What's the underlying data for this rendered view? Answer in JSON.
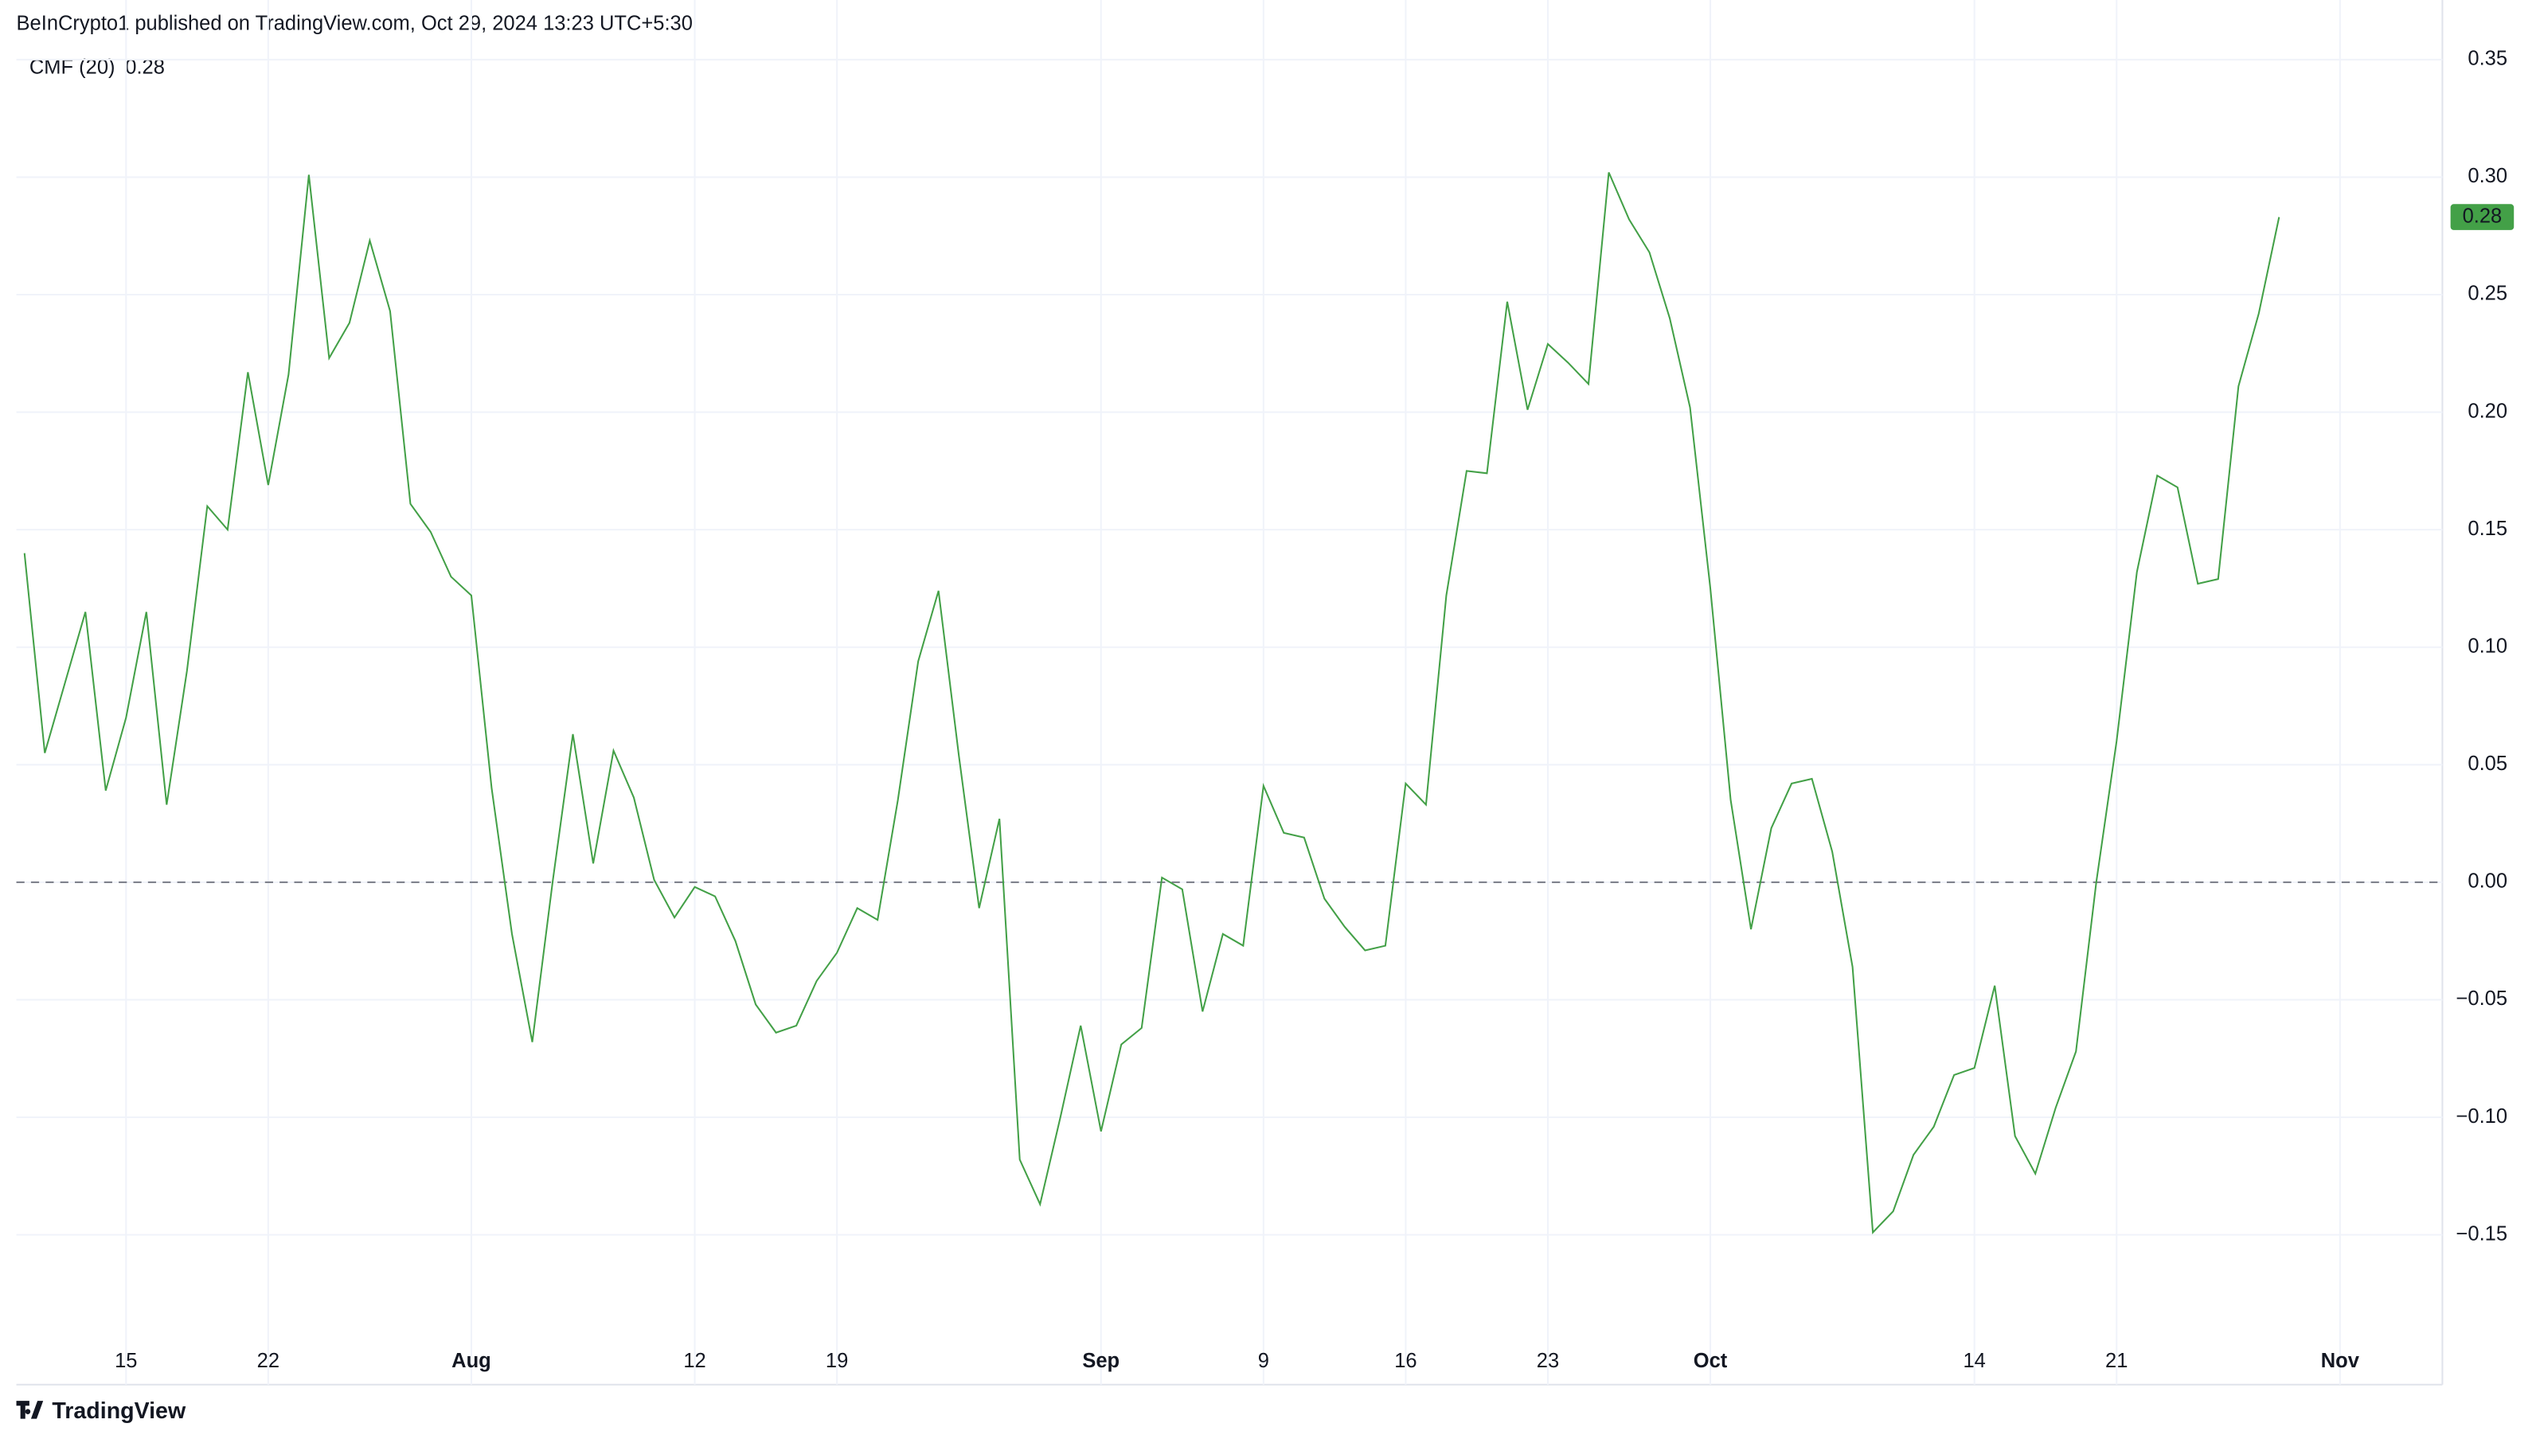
{
  "header": "BeInCrypto1 published on TradingView.com, Oct 29, 2024 13:23 UTC+5:30",
  "footer": "TradingView",
  "chart_data": {
    "type": "line",
    "series": [
      {
        "name": "CMF (20)",
        "color": "#43a047",
        "value_label": "0.28",
        "values": [
          0.14,
          0.055,
          0.085,
          0.115,
          0.039,
          0.07,
          0.115,
          0.033,
          0.09,
          0.16,
          0.15,
          0.217,
          0.169,
          0.216,
          0.301,
          0.223,
          0.238,
          0.273,
          0.243,
          0.161,
          0.149,
          0.13,
          0.122,
          0.04,
          -0.022,
          -0.068,
          0.0,
          0.063,
          0.008,
          0.056,
          0.036,
          0.001,
          -0.015,
          -0.002,
          -0.006,
          -0.025,
          -0.052,
          -0.064,
          -0.061,
          -0.042,
          -0.03,
          -0.011,
          -0.016,
          0.035,
          0.094,
          0.124,
          0.054,
          -0.011,
          0.027,
          -0.118,
          -0.137,
          -0.1,
          -0.061,
          -0.106,
          -0.069,
          -0.062,
          0.002,
          -0.003,
          -0.055,
          -0.022,
          -0.027,
          0.041,
          0.021,
          0.019,
          -0.007,
          -0.019,
          -0.029,
          -0.027,
          0.042,
          0.033,
          0.122,
          0.175,
          0.174,
          0.247,
          0.201,
          0.229,
          0.221,
          0.212,
          0.302,
          0.282,
          0.268,
          0.24,
          0.202,
          0.125,
          0.035,
          -0.02,
          0.023,
          0.042,
          0.044,
          0.013,
          -0.036,
          -0.149,
          -0.14,
          -0.116,
          -0.104,
          -0.082,
          -0.079,
          -0.044,
          -0.108,
          -0.124,
          -0.096,
          -0.072,
          0.0,
          0.06,
          0.132,
          0.173,
          0.168,
          0.127,
          0.129,
          0.211,
          0.242,
          0.283
        ]
      }
    ],
    "start": "Jul 10",
    "xticks": [
      {
        "value": "Jul 15",
        "label": "15"
      },
      {
        "value": "Jul 22",
        "label": "22"
      },
      {
        "value": "Aug 1",
        "label": "Aug"
      },
      {
        "value": "Aug 12",
        "label": "12"
      },
      {
        "value": "Aug 19",
        "label": "19"
      },
      {
        "value": "Sep 1",
        "label": "Sep"
      },
      {
        "value": "Sep 9",
        "label": "9"
      },
      {
        "value": "Sep 16",
        "label": "16"
      },
      {
        "value": "Sep 23",
        "label": "23"
      },
      {
        "value": "Oct 1",
        "label": "Oct"
      },
      {
        "value": "Oct 14",
        "label": "14"
      },
      {
        "value": "Oct 21",
        "label": "21"
      },
      {
        "value": "Nov 1",
        "label": "Nov"
      }
    ],
    "ylim": [
      -0.193,
      0.356
    ],
    "yticks": [
      {
        "value": -0.15,
        "label": "−0.15"
      },
      {
        "value": -0.1,
        "label": "−0.10"
      },
      {
        "value": -0.05,
        "label": "−0.05"
      },
      {
        "value": 0,
        "label": "0.00"
      },
      {
        "value": 0.05,
        "label": "0.05"
      },
      {
        "value": 0.1,
        "label": "0.10"
      },
      {
        "value": 0.15,
        "label": "0.15"
      },
      {
        "value": 0.2,
        "label": "0.20"
      },
      {
        "value": 0.25,
        "label": "0.25"
      },
      {
        "value": 0.3,
        "label": "0.30"
      },
      {
        "value": 0.35,
        "label": "0.35"
      }
    ],
    "baseline": 0,
    "grid": true
  }
}
